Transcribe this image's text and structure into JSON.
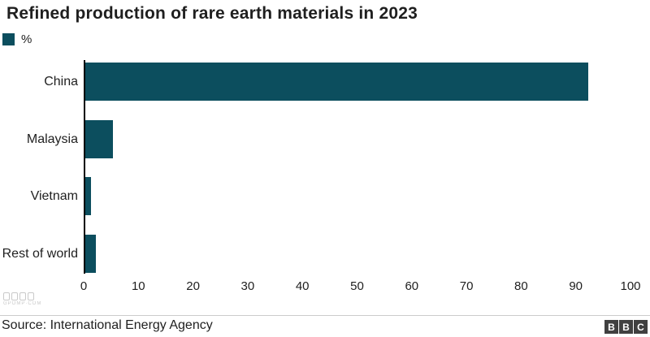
{
  "chart_data": {
    "type": "bar",
    "orientation": "horizontal",
    "title": "Refined production of rare earth materials in 2023",
    "legend": "%",
    "legend_position": "top-left",
    "categories": [
      "China",
      "Malaysia",
      "Vietnam",
      "Rest of world"
    ],
    "values": [
      92,
      5,
      1,
      2
    ],
    "xlabel": "",
    "ylabel": "",
    "xlim": [
      0,
      100
    ],
    "xticks": [
      0,
      10,
      20,
      30,
      40,
      50,
      60,
      70,
      80,
      90,
      100
    ],
    "grid": false,
    "bar_color": "#0c4e5e"
  },
  "footer": {
    "source": "Source: International Energy Agency",
    "logo_letters": [
      "B",
      "B",
      "C"
    ],
    "logo_color": "#404040"
  },
  "watermark": {
    "text": "GPOMP·COM"
  },
  "colors": {
    "text": "#1f1f1f",
    "axis": "#000000",
    "divider": "#cccccc",
    "watermark": "#c9c9c9"
  }
}
